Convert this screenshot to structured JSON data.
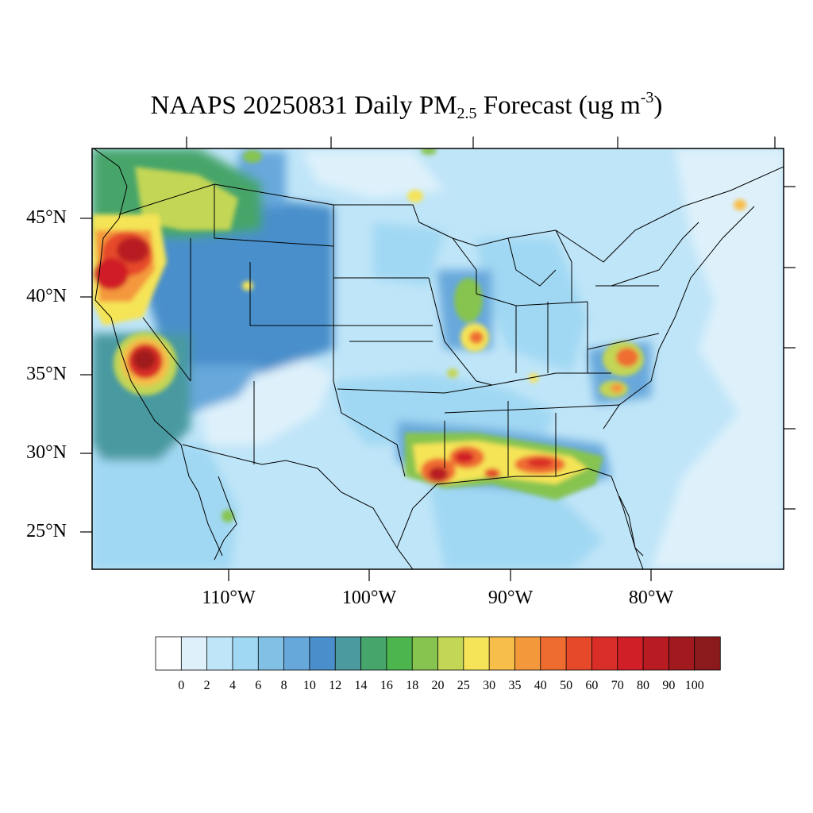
{
  "title": {
    "prefix": "NAAPS 20250831 Daily PM",
    "subscript": "2.5",
    "middle": " Forecast (ug m",
    "superscript": "-3",
    "suffix": ")"
  },
  "axes": {
    "lat_labels": [
      "45°N",
      "40°N",
      "35°N",
      "30°N",
      "25°N"
    ],
    "lon_labels": [
      "110°W",
      "100°W",
      "90°W",
      "80°W"
    ]
  },
  "colorbar": {
    "labels": [
      "0",
      "2",
      "4",
      "6",
      "8",
      "10",
      "12",
      "14",
      "16",
      "18",
      "20",
      "25",
      "30",
      "35",
      "40",
      "50",
      "60",
      "70",
      "80",
      "90",
      "100"
    ],
    "colors": [
      "#ffffff",
      "#def1fb",
      "#bfe5f8",
      "#a0d8f3",
      "#83c0e6",
      "#67a8db",
      "#4a8fcb",
      "#4a9aa0",
      "#46a56a",
      "#4cb54d",
      "#86c44f",
      "#c3d655",
      "#f5e457",
      "#f7be4a",
      "#f4983c",
      "#ef6c30",
      "#e6492a",
      "#d92e28",
      "#d01f26",
      "#b81b22",
      "#a01a1f",
      "#8a1a1b"
    ]
  }
}
